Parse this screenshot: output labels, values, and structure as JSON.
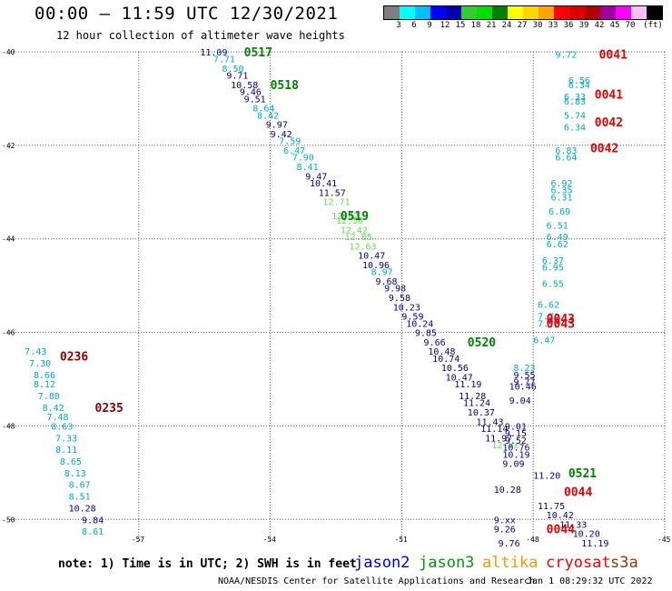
{
  "header": {
    "title": "00:00 – 11:59 UTC 12/30/2021",
    "subtitle": "12 hour collection of altimeter wave heights"
  },
  "colorbar": {
    "colors": [
      "#7f7f7f",
      "#00ffff",
      "#00bfff",
      "#0000ff",
      "#0000b0",
      "#32cd32",
      "#00e000",
      "#008000",
      "#ffff00",
      "#ffd700",
      "#ffa500",
      "#ff0000",
      "#dc0000",
      "#b00000",
      "#a000a0",
      "#ff00ff",
      "#ffc0ff",
      "#000000"
    ],
    "ticks": [
      "3",
      "6",
      "9",
      "12",
      "15",
      "18",
      "21",
      "24",
      "27",
      "30",
      "33",
      "36",
      "39",
      "42",
      "45",
      "70",
      "(ft)"
    ]
  },
  "map": {
    "lon_ticks": [
      "-57",
      "-54",
      "-51",
      "-48",
      "-45"
    ],
    "lat_ticks": [
      "-40",
      "-42",
      "-44",
      "-46",
      "-48",
      "-50"
    ],
    "lon_range": [
      -60,
      -45
    ],
    "lat_range": [
      -50.5,
      -40
    ]
  },
  "colors": {
    "dark_blue": "#00008b",
    "cyan": "#00aacc",
    "light_green": "#66dd55",
    "green": "#008000",
    "red": "#e00000",
    "dark_red": "#8b0000"
  },
  "tracks": [
    {
      "label": "0517",
      "label_color": "green",
      "lat": -40.0,
      "lon": -54.6
    },
    {
      "label": "0518",
      "label_color": "green",
      "lat": -40.7,
      "lon": -54.0
    },
    {
      "label": "0519",
      "label_color": "green",
      "lat": -43.5,
      "lon": -52.4
    },
    {
      "label": "0520",
      "label_color": "green",
      "lat": -46.2,
      "lon": -49.5
    },
    {
      "label": "0521",
      "label_color": "green",
      "lat": -49.0,
      "lon": -47.2
    },
    {
      "label": "0236",
      "label_color": "dark_red",
      "lat": -46.5,
      "lon": -58.8
    },
    {
      "label": "0235",
      "label_color": "dark_red",
      "lat": -47.6,
      "lon": -58.0
    },
    {
      "label": "0041",
      "label_color": "red",
      "lat": -40.05,
      "lon": -46.5
    },
    {
      "label": "0041",
      "label_color": "red",
      "lat": -40.9,
      "lon": -46.6
    },
    {
      "label": "0042",
      "label_color": "red",
      "lat": -41.5,
      "lon": -46.6
    },
    {
      "label": "0042",
      "label_color": "red",
      "lat": -42.05,
      "lon": -46.7
    },
    {
      "label": "0043",
      "label_color": "red",
      "lat": -45.7,
      "lon": -47.7
    },
    {
      "label": "0043",
      "label_color": "red",
      "lat": -45.8,
      "lon": -47.7
    },
    {
      "label": "0044",
      "label_color": "red",
      "lat": -49.4,
      "lon": -47.3
    },
    {
      "label": "0044",
      "label_color": "red",
      "lat": -50.2,
      "lon": -47.7
    }
  ],
  "observations": [
    {
      "v": "11.09",
      "lat": -40.0,
      "lon": -55.6,
      "c": "dark_blue"
    },
    {
      "v": "7.71",
      "lat": -40.15,
      "lon": -55.3,
      "c": "cyan"
    },
    {
      "v": "8.50",
      "lat": -40.35,
      "lon": -55.1,
      "c": "cyan"
    },
    {
      "v": "9.71",
      "lat": -40.5,
      "lon": -55.0,
      "c": "dark_blue"
    },
    {
      "v": "10.58",
      "lat": -40.7,
      "lon": -54.9,
      "c": "dark_blue"
    },
    {
      "v": "9.46",
      "lat": -40.85,
      "lon": -54.7,
      "c": "dark_blue"
    },
    {
      "v": "9.51",
      "lat": -41.0,
      "lon": -54.6,
      "c": "dark_blue"
    },
    {
      "v": "8.64",
      "lat": -41.2,
      "lon": -54.4,
      "c": "cyan"
    },
    {
      "v": "8.42",
      "lat": -41.35,
      "lon": -54.3,
      "c": "cyan"
    },
    {
      "v": "9.97",
      "lat": -41.55,
      "lon": -54.1,
      "c": "dark_blue"
    },
    {
      "v": "9.42",
      "lat": -41.75,
      "lon": -54.0,
      "c": "dark_blue"
    },
    {
      "v": "7.59",
      "lat": -41.9,
      "lon": -53.8,
      "c": "cyan"
    },
    {
      "v": "6.47",
      "lat": -42.1,
      "lon": -53.7,
      "c": "cyan"
    },
    {
      "v": "7.90",
      "lat": -42.25,
      "lon": -53.5,
      "c": "cyan"
    },
    {
      "v": "8.41",
      "lat": -42.45,
      "lon": -53.4,
      "c": "cyan"
    },
    {
      "v": "9.47",
      "lat": -42.65,
      "lon": -53.2,
      "c": "dark_blue"
    },
    {
      "v": "10.41",
      "lat": -42.8,
      "lon": -53.1,
      "c": "dark_blue"
    },
    {
      "v": "11.57",
      "lat": -43.0,
      "lon": -52.9,
      "c": "dark_blue"
    },
    {
      "v": "12.71",
      "lat": -43.2,
      "lon": -52.8,
      "c": "light_green"
    },
    {
      "v": "12.42",
      "lat": -43.5,
      "lon": -52.6,
      "c": "light_green"
    },
    {
      "v": "12.56",
      "lat": -43.6,
      "lon": -52.5,
      "c": "light_green"
    },
    {
      "v": "12.42",
      "lat": -43.8,
      "lon": -52.4,
      "c": "light_green"
    },
    {
      "v": "12.85",
      "lat": -43.95,
      "lon": -52.3,
      "c": "light_green"
    },
    {
      "v": "12.63",
      "lat": -44.15,
      "lon": -52.2,
      "c": "light_green"
    },
    {
      "v": "10.47",
      "lat": -44.35,
      "lon": -52.0,
      "c": "dark_blue"
    },
    {
      "v": "10.96",
      "lat": -44.55,
      "lon": -51.9,
      "c": "dark_blue"
    },
    {
      "v": "8.97",
      "lat": -44.7,
      "lon": -51.7,
      "c": "cyan"
    },
    {
      "v": "9.68",
      "lat": -44.9,
      "lon": -51.6,
      "c": "dark_blue"
    },
    {
      "v": "9.98",
      "lat": -45.05,
      "lon": -51.4,
      "c": "dark_blue"
    },
    {
      "v": "9.58",
      "lat": -45.25,
      "lon": -51.3,
      "c": "dark_blue"
    },
    {
      "v": "10.23",
      "lat": -45.45,
      "lon": -51.2,
      "c": "dark_blue"
    },
    {
      "v": "9.59",
      "lat": -45.65,
      "lon": -51.0,
      "c": "dark_blue"
    },
    {
      "v": "10.24",
      "lat": -45.8,
      "lon": -50.9,
      "c": "dark_blue"
    },
    {
      "v": "9.85",
      "lat": -46.0,
      "lon": -50.7,
      "c": "dark_blue"
    },
    {
      "v": "9.66",
      "lat": -46.2,
      "lon": -50.5,
      "c": "dark_blue"
    },
    {
      "v": "10.48",
      "lat": -46.4,
      "lon": -50.4,
      "c": "dark_blue"
    },
    {
      "v": "10.74",
      "lat": -46.55,
      "lon": -50.3,
      "c": "dark_blue"
    },
    {
      "v": "10.56",
      "lat": -46.75,
      "lon": -50.1,
      "c": "dark_blue"
    },
    {
      "v": "10.47",
      "lat": -46.95,
      "lon": -50.0,
      "c": "dark_blue"
    },
    {
      "v": "11.19",
      "lat": -47.1,
      "lon": -49.8,
      "c": "dark_blue"
    },
    {
      "v": "11.28",
      "lat": -47.35,
      "lon": -49.7,
      "c": "dark_blue"
    },
    {
      "v": "11.24",
      "lat": -47.5,
      "lon": -49.6,
      "c": "dark_blue"
    },
    {
      "v": "10.37",
      "lat": -47.7,
      "lon": -49.5,
      "c": "dark_blue"
    },
    {
      "v": "11.43",
      "lat": -47.9,
      "lon": -49.3,
      "c": "dark_blue"
    },
    {
      "v": "11.14",
      "lat": -48.05,
      "lon": -49.2,
      "c": "dark_blue"
    },
    {
      "v": "11.97",
      "lat": -48.25,
      "lon": -49.1,
      "c": "dark_blue"
    },
    {
      "v": "12.xx",
      "lat": -48.4,
      "lon": -48.95,
      "c": "light_green"
    },
    {
      "v": "10.76",
      "lat": -48.45,
      "lon": -48.7,
      "c": "dark_blue"
    },
    {
      "v": "10.19",
      "lat": -48.6,
      "lon": -48.7,
      "c": "dark_blue"
    },
    {
      "v": "9.09",
      "lat": -48.8,
      "lon": -48.7,
      "c": "dark_blue"
    },
    {
      "v": "11.20",
      "lat": -49.05,
      "lon": -48.0,
      "c": "dark_blue"
    },
    {
      "v": "10.28",
      "lat": -49.35,
      "lon": -48.9,
      "c": "dark_blue"
    },
    {
      "v": "11.75",
      "lat": -49.7,
      "lon": -47.9,
      "c": "dark_blue"
    },
    {
      "v": "10.42",
      "lat": -49.9,
      "lon": -47.7,
      "c": "dark_blue"
    },
    {
      "v": "11.33",
      "lat": -50.1,
      "lon": -47.4,
      "c": "dark_blue"
    },
    {
      "v": "10.20",
      "lat": -50.3,
      "lon": -47.1,
      "c": "dark_blue"
    },
    {
      "v": "11.19",
      "lat": -50.5,
      "lon": -46.9,
      "c": "dark_blue"
    },
    {
      "v": "9.xx",
      "lat": -50.0,
      "lon": -48.9,
      "c": "dark_blue"
    },
    {
      "v": "9.26",
      "lat": -50.2,
      "lon": -48.9,
      "c": "dark_blue"
    },
    {
      "v": "9.76",
      "lat": -50.5,
      "lon": -48.8,
      "c": "dark_blue"
    },
    {
      "v": "8.23",
      "lat": -46.75,
      "lon": -48.45,
      "c": "cyan"
    },
    {
      "v": "9.55",
      "lat": -46.9,
      "lon": -48.45,
      "c": "dark_blue"
    },
    {
      "v": "9.77",
      "lat": -47.05,
      "lon": -48.45,
      "c": "dark_blue"
    },
    {
      "v": "10.46",
      "lat": -47.15,
      "lon": -48.55,
      "c": "dark_blue"
    },
    {
      "v": "9.04",
      "lat": -47.45,
      "lon": -48.55,
      "c": "dark_blue"
    },
    {
      "v": "9.01",
      "lat": -48.0,
      "lon": -48.65,
      "c": "dark_blue"
    },
    {
      "v": "9.15",
      "lat": -48.15,
      "lon": -48.65,
      "c": "dark_blue"
    },
    {
      "v": "9.52",
      "lat": -48.3,
      "lon": -48.65,
      "c": "dark_blue"
    },
    {
      "v": "9.72",
      "lat": -40.05,
      "lon": -47.5,
      "c": "cyan"
    },
    {
      "v": "6.56",
      "lat": -40.6,
      "lon": -47.2,
      "c": "cyan"
    },
    {
      "v": "6.34",
      "lat": -40.7,
      "lon": -47.2,
      "c": "cyan"
    },
    {
      "v": "6.33",
      "lat": -40.95,
      "lon": -47.3,
      "c": "cyan"
    },
    {
      "v": "6.83",
      "lat": -41.05,
      "lon": -47.3,
      "c": "cyan"
    },
    {
      "v": "5.74",
      "lat": -41.35,
      "lon": -47.3,
      "c": "cyan"
    },
    {
      "v": "6.34",
      "lat": -41.6,
      "lon": -47.3,
      "c": "cyan"
    },
    {
      "v": "6.83",
      "lat": -42.1,
      "lon": -47.5,
      "c": "cyan"
    },
    {
      "v": "6.64",
      "lat": -42.25,
      "lon": -47.5,
      "c": "cyan"
    },
    {
      "v": "6.92",
      "lat": -42.8,
      "lon": -47.6,
      "c": "cyan"
    },
    {
      "v": "6.35",
      "lat": -42.95,
      "lon": -47.6,
      "c": "cyan"
    },
    {
      "v": "6.31",
      "lat": -43.1,
      "lon": -47.6,
      "c": "cyan"
    },
    {
      "v": "6.69",
      "lat": -43.4,
      "lon": -47.65,
      "c": "cyan"
    },
    {
      "v": "6.51",
      "lat": -43.7,
      "lon": -47.7,
      "c": "cyan"
    },
    {
      "v": "6.49",
      "lat": -43.95,
      "lon": -47.7,
      "c": "cyan"
    },
    {
      "v": "6.62",
      "lat": -44.1,
      "lon": -47.7,
      "c": "cyan"
    },
    {
      "v": "6.37",
      "lat": -44.45,
      "lon": -47.8,
      "c": "cyan"
    },
    {
      "v": "6.95",
      "lat": -44.6,
      "lon": -47.8,
      "c": "cyan"
    },
    {
      "v": "6.55",
      "lat": -44.95,
      "lon": -47.8,
      "c": "cyan"
    },
    {
      "v": "6.62",
      "lat": -45.4,
      "lon": -47.9,
      "c": "cyan"
    },
    {
      "v": "7.72",
      "lat": -45.65,
      "lon": -47.9,
      "c": "cyan"
    },
    {
      "v": "7.72",
      "lat": -45.8,
      "lon": -47.9,
      "c": "cyan"
    },
    {
      "v": "6.47",
      "lat": -46.15,
      "lon": -48.0,
      "c": "cyan"
    },
    {
      "v": "7.43",
      "lat": -46.4,
      "lon": -59.6,
      "c": "cyan"
    },
    {
      "v": "7.30",
      "lat": -46.65,
      "lon": -59.5,
      "c": "cyan"
    },
    {
      "v": "8.66",
      "lat": -46.9,
      "lon": -59.4,
      "c": "cyan"
    },
    {
      "v": "8.12",
      "lat": -47.1,
      "lon": -59.4,
      "c": "cyan"
    },
    {
      "v": "7.80",
      "lat": -47.35,
      "lon": -59.3,
      "c": "cyan"
    },
    {
      "v": "8.42",
      "lat": -47.6,
      "lon": -59.2,
      "c": "cyan"
    },
    {
      "v": "7.48",
      "lat": -47.8,
      "lon": -59.1,
      "c": "cyan"
    },
    {
      "v": "8.63",
      "lat": -48.0,
      "lon": -59.0,
      "c": "cyan"
    },
    {
      "v": "7.33",
      "lat": -48.25,
      "lon": -58.9,
      "c": "cyan"
    },
    {
      "v": "8.11",
      "lat": -48.5,
      "lon": -58.9,
      "c": "cyan"
    },
    {
      "v": "8.65",
      "lat": -48.75,
      "lon": -58.8,
      "c": "cyan"
    },
    {
      "v": "8.13",
      "lat": -49.0,
      "lon": -58.7,
      "c": "cyan"
    },
    {
      "v": "8.67",
      "lat": -49.25,
      "lon": -58.6,
      "c": "cyan"
    },
    {
      "v": "8.51",
      "lat": -49.5,
      "lon": -58.6,
      "c": "cyan"
    },
    {
      "v": "10.28",
      "lat": -49.75,
      "lon": -58.6,
      "c": "dark_blue"
    },
    {
      "v": "9.84",
      "lat": -50.0,
      "lon": -58.3,
      "c": "dark_blue"
    },
    {
      "v": "8.61",
      "lat": -50.25,
      "lon": -58.3,
      "c": "cyan"
    }
  ],
  "legend": [
    {
      "label": "jason2",
      "color": "#0000cc"
    },
    {
      "label": "jason3",
      "color": "#009900"
    },
    {
      "label": "altika",
      "color": "#ff9900"
    },
    {
      "label": "cryosat",
      "color": "#ff0000"
    },
    {
      "label": "s3a",
      "color": "#993300"
    }
  ],
  "footer": {
    "note": "note: 1) Time is in UTC; 2) SWH is in feet",
    "credit": "NOAA/NESDIS Center for Satellite Applications and Research",
    "stamp": "Jan  1 08:29:32 UTC 2022"
  }
}
